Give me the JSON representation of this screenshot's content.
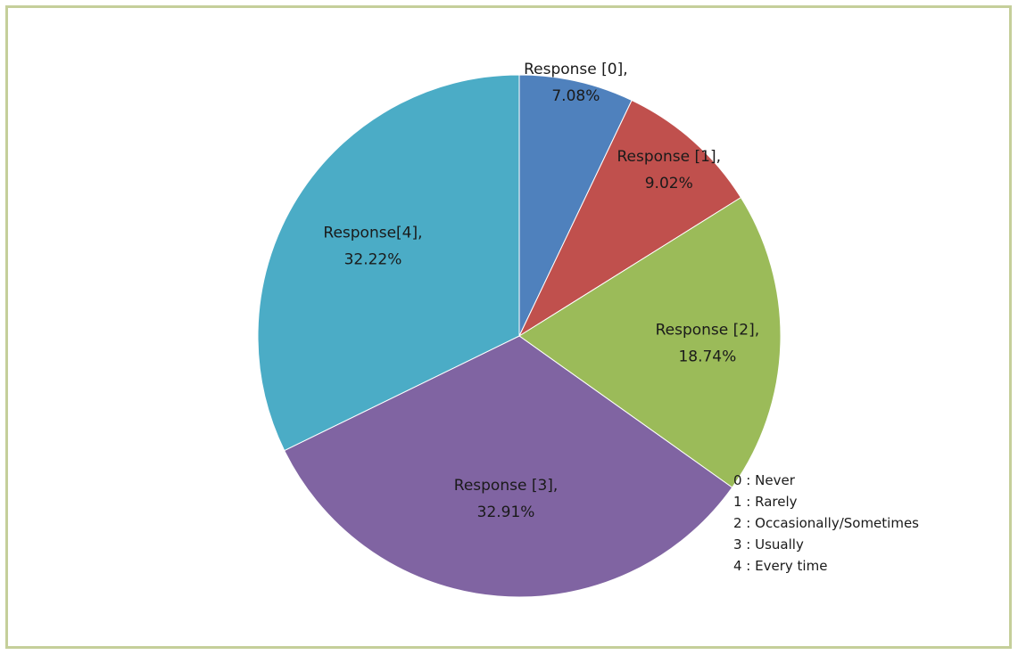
{
  "chart_data": {
    "type": "pie",
    "slices": [
      {
        "label_line1": "Response [0],",
        "label_line2": "7.08%",
        "value": 7.08,
        "color": "#4f81bd"
      },
      {
        "label_line1": "Response [1],",
        "label_line2": "9.02%",
        "value": 9.02,
        "color": "#c0504d"
      },
      {
        "label_line1": "Response [2],",
        "label_line2": "18.74%",
        "value": 18.74,
        "color": "#9bbb59"
      },
      {
        "label_line1": "Response [3],",
        "label_line2": "32.91%",
        "value": 32.91,
        "color": "#8064a2"
      },
      {
        "label_line1": "Response[4],",
        "label_line2": "32.22%",
        "value": 32.22,
        "color": "#4bacc6"
      }
    ],
    "annotations": [
      "0 : Never",
      "1 : Rarely",
      "2 : Occasionally/Sometimes",
      "3 : Usually",
      "4 : Every time"
    ],
    "title": "",
    "start_angle_deg": 0,
    "direction": "clockwise"
  },
  "frame_color": "#c5cf9a"
}
